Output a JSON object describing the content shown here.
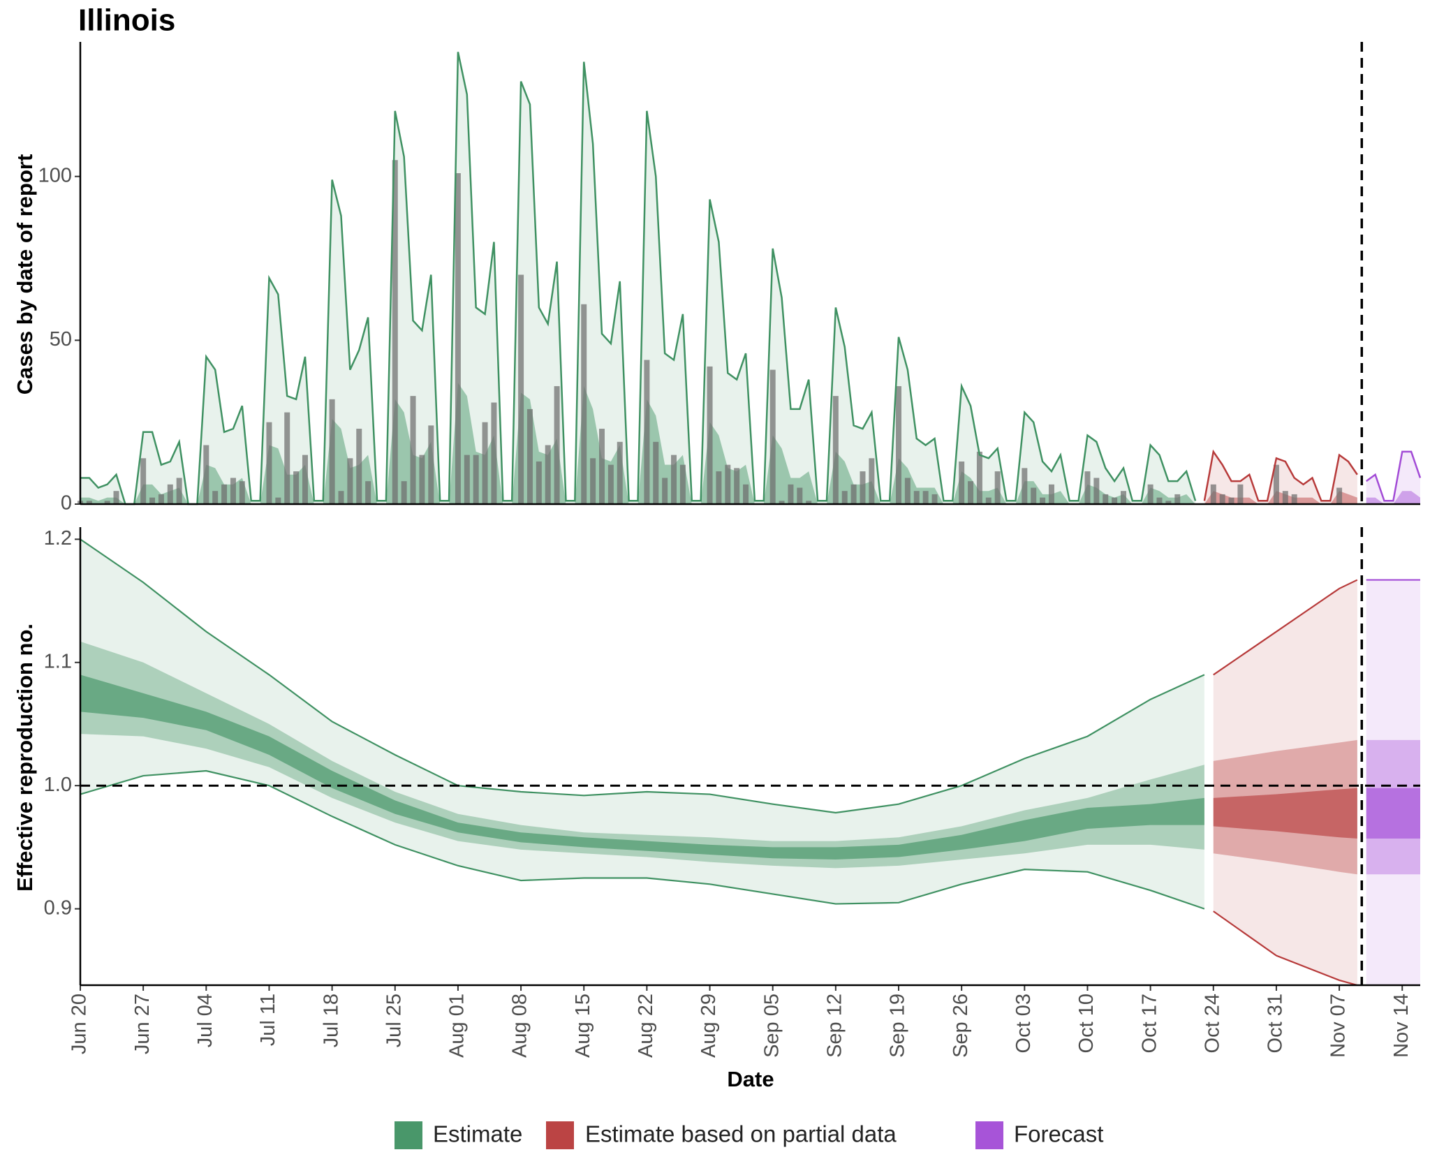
{
  "chart_data": [
    {
      "type": "bar",
      "title": "Illinois",
      "y_label": "Cases by date of report",
      "xlim": [
        0,
        149
      ],
      "ylim": [
        0,
        140
      ],
      "yticks": [
        0,
        50,
        100
      ],
      "bars": {
        "color": "#6e6e6e",
        "x": [
          0,
          1,
          2,
          3,
          4,
          5,
          6,
          7,
          8,
          9,
          10,
          11,
          12,
          13,
          14,
          15,
          16,
          17,
          18,
          19,
          20,
          21,
          22,
          23,
          24,
          25,
          26,
          27,
          28,
          29,
          30,
          31,
          32,
          33,
          34,
          35,
          36,
          37,
          38,
          39,
          40,
          41,
          42,
          43,
          44,
          45,
          46,
          47,
          48,
          49,
          50,
          51,
          52,
          53,
          54,
          55,
          56,
          57,
          58,
          59,
          60,
          61,
          62,
          63,
          64,
          65,
          66,
          67,
          68,
          69,
          70,
          71,
          72,
          73,
          74,
          75,
          76,
          77,
          78,
          79,
          80,
          81,
          82,
          83,
          84,
          85,
          86,
          87,
          88,
          89,
          90,
          91,
          92,
          93,
          94,
          95,
          96,
          97,
          98,
          99,
          100,
          101,
          102,
          103,
          104,
          105,
          106,
          107,
          108,
          109,
          110,
          111,
          112,
          113,
          114,
          115,
          116,
          117,
          118,
          119,
          120,
          121,
          122,
          123,
          124,
          125,
          126,
          127,
          128,
          129,
          130,
          131,
          132,
          133,
          134,
          135,
          136,
          137,
          138,
          139,
          140
        ],
        "values": [
          1,
          1,
          0,
          1,
          4,
          0,
          0,
          14,
          2,
          3,
          6,
          8,
          0,
          0,
          18,
          4,
          6,
          8,
          7,
          0,
          0,
          25,
          2,
          28,
          10,
          15,
          0,
          0,
          32,
          4,
          14,
          23,
          7,
          0,
          0,
          105,
          7,
          33,
          15,
          24,
          0,
          0,
          101,
          15,
          15,
          25,
          31,
          0,
          0,
          70,
          29,
          13,
          18,
          36,
          0,
          0,
          61,
          14,
          23,
          12,
          19,
          0,
          0,
          44,
          19,
          8,
          15,
          12,
          0,
          0,
          42,
          10,
          12,
          11,
          6,
          0,
          0,
          41,
          1,
          6,
          5,
          1,
          0,
          0,
          33,
          4,
          6,
          10,
          14,
          0,
          0,
          36,
          8,
          4,
          4,
          3,
          0,
          0,
          13,
          7,
          16,
          2,
          10,
          0,
          0,
          11,
          5,
          2,
          6,
          0,
          0,
          0,
          10,
          8,
          3,
          2,
          4,
          0,
          0,
          6,
          2,
          1,
          3,
          0,
          0,
          0,
          6,
          3,
          2,
          6,
          0,
          0,
          0,
          12,
          4,
          3,
          0,
          0,
          0,
          0,
          5
        ]
      },
      "series": [
        {
          "name": "Estimate",
          "color": "#3f9162",
          "x": [
            0,
            1,
            2,
            3,
            4,
            5,
            6,
            7,
            8,
            9,
            10,
            11,
            12,
            13,
            14,
            15,
            16,
            17,
            18,
            19,
            20,
            21,
            22,
            23,
            24,
            25,
            26,
            27,
            28,
            29,
            30,
            31,
            32,
            33,
            34,
            35,
            36,
            37,
            38,
            39,
            40,
            41,
            42,
            43,
            44,
            45,
            46,
            47,
            48,
            49,
            50,
            51,
            52,
            53,
            54,
            55,
            56,
            57,
            58,
            59,
            60,
            61,
            62,
            63,
            64,
            65,
            66,
            67,
            68,
            69,
            70,
            71,
            72,
            73,
            74,
            75,
            76,
            77,
            78,
            79,
            80,
            81,
            82,
            83,
            84,
            85,
            86,
            87,
            88,
            89,
            90,
            91,
            92,
            93,
            94,
            95,
            96,
            97,
            98,
            99,
            100,
            101,
            102,
            103,
            104,
            105,
            106,
            107,
            108,
            109,
            110,
            111,
            112,
            113,
            114,
            115,
            116,
            117,
            118,
            119,
            120,
            121,
            122,
            123,
            124
          ],
          "values": [
            8,
            8,
            5,
            6,
            9,
            0,
            0,
            22,
            22,
            12,
            13,
            19,
            0,
            0,
            45,
            41,
            22,
            23,
            30,
            1,
            1,
            69,
            64,
            33,
            32,
            45,
            1,
            1,
            99,
            88,
            41,
            47,
            57,
            1,
            1,
            120,
            106,
            56,
            53,
            70,
            1,
            1,
            138,
            125,
            60,
            58,
            80,
            1,
            1,
            129,
            122,
            60,
            55,
            74,
            1,
            1,
            135,
            110,
            52,
            49,
            68,
            1,
            1,
            120,
            100,
            46,
            44,
            58,
            1,
            1,
            93,
            80,
            40,
            38,
            46,
            1,
            1,
            78,
            63,
            29,
            29,
            38,
            1,
            1,
            60,
            48,
            24,
            23,
            28,
            1,
            1,
            51,
            41,
            20,
            18,
            20,
            1,
            1,
            36,
            30,
            15,
            14,
            17,
            1,
            1,
            28,
            25,
            13,
            10,
            15,
            1,
            1,
            21,
            19,
            11,
            7,
            11,
            1,
            1,
            18,
            15,
            7,
            7,
            10,
            1
          ],
          "median": [
            2,
            2,
            1,
            2,
            2,
            0,
            0,
            6,
            6,
            3,
            4,
            5,
            0,
            0,
            12,
            11,
            6,
            6,
            8,
            0,
            0,
            18,
            17,
            9,
            9,
            12,
            0,
            0,
            26,
            23,
            11,
            12,
            15,
            0,
            0,
            32,
            28,
            15,
            14,
            19,
            0,
            0,
            37,
            33,
            16,
            15,
            21,
            0,
            0,
            34,
            32,
            16,
            15,
            20,
            0,
            0,
            36,
            29,
            14,
            13,
            18,
            0,
            0,
            32,
            27,
            12,
            12,
            15,
            0,
            0,
            25,
            21,
            11,
            10,
            12,
            0,
            0,
            21,
            17,
            8,
            8,
            10,
            0,
            0,
            16,
            13,
            6,
            6,
            7,
            0,
            0,
            14,
            11,
            5,
            5,
            5,
            0,
            0,
            10,
            8,
            4,
            4,
            5,
            0,
            0,
            7,
            7,
            3,
            3,
            4,
            0,
            0,
            6,
            5,
            3,
            2,
            3,
            0,
            0,
            5,
            4,
            2,
            2,
            3,
            0
          ]
        },
        {
          "name": "Estimate based on partial data",
          "color": "#b73a3a",
          "x": [
            125,
            126,
            127,
            128,
            129,
            130,
            131,
            132,
            133,
            134,
            135,
            136,
            137,
            138,
            139,
            140,
            141,
            142
          ],
          "values": [
            1,
            16,
            12,
            7,
            7,
            9,
            1,
            1,
            14,
            13,
            8,
            6,
            8,
            1,
            1,
            15,
            13,
            9
          ],
          "median": [
            0,
            4,
            3,
            2,
            2,
            2,
            0,
            0,
            4,
            3,
            2,
            2,
            2,
            0,
            0,
            4,
            3,
            2
          ]
        },
        {
          "name": "Forecast",
          "color": "#a24bd6",
          "x": [
            143,
            144,
            145,
            146,
            147,
            148,
            149
          ],
          "values": [
            7,
            9,
            1,
            1,
            16,
            16,
            8
          ],
          "median": [
            2,
            2,
            0,
            0,
            4,
            4,
            2
          ]
        }
      ]
    },
    {
      "type": "band",
      "x_label": "Date",
      "y_label": "Effective reproduction no.",
      "xlim": [
        0,
        149
      ],
      "ylim": [
        0.838,
        1.207
      ],
      "yticks": [
        0.9,
        {
          "value": 1,
          "label": "1.0"
        },
        1.1,
        1.2
      ],
      "xticks": [
        {
          "value": 0,
          "label": "Jun 20"
        },
        {
          "value": 7,
          "label": "Jun 27"
        },
        {
          "value": 14,
          "label": "Jul 04"
        },
        {
          "value": 21,
          "label": "Jul 11"
        },
        {
          "value": 28,
          "label": "Jul 18"
        },
        {
          "value": 35,
          "label": "Jul 25"
        },
        {
          "value": 42,
          "label": "Aug 01"
        },
        {
          "value": 49,
          "label": "Aug 08"
        },
        {
          "value": 56,
          "label": "Aug 15"
        },
        {
          "value": 63,
          "label": "Aug 22"
        },
        {
          "value": 70,
          "label": "Aug 29"
        },
        {
          "value": 77,
          "label": "Sep 05"
        },
        {
          "value": 84,
          "label": "Sep 12"
        },
        {
          "value": 91,
          "label": "Sep 19"
        },
        {
          "value": 98,
          "label": "Sep 26"
        },
        {
          "value": 105,
          "label": "Oct 03"
        },
        {
          "value": 112,
          "label": "Oct 10"
        },
        {
          "value": 119,
          "label": "Oct 17"
        },
        {
          "value": 126,
          "label": "Oct 24"
        },
        {
          "value": 133,
          "label": "Oct 31"
        },
        {
          "value": 140,
          "label": "Nov 07"
        },
        {
          "value": 147,
          "label": "Nov 14"
        }
      ],
      "reference_line": 1,
      "series": [
        {
          "name": "Estimate",
          "color": "#3f9162",
          "x": [
            0,
            7,
            14,
            21,
            28,
            35,
            42,
            49,
            56,
            63,
            70,
            77,
            84,
            91,
            98,
            105,
            112,
            119,
            125
          ],
          "upper90": [
            1.2,
            1.165,
            1.125,
            1.09,
            1.052,
            1.025,
            1.0,
            0.995,
            0.992,
            0.995,
            0.993,
            0.985,
            0.978,
            0.985,
            1.0,
            1.022,
            1.04,
            1.07,
            1.09
          ],
          "lower90": [
            0.993,
            1.008,
            1.012,
            1.0,
            0.975,
            0.952,
            0.935,
            0.923,
            0.925,
            0.925,
            0.92,
            0.912,
            0.904,
            0.905,
            0.92,
            0.932,
            0.93,
            0.915,
            0.9
          ],
          "upper50": [
            1.117,
            1.1,
            1.075,
            1.05,
            1.02,
            0.995,
            0.977,
            0.968,
            0.962,
            0.96,
            0.958,
            0.955,
            0.955,
            0.958,
            0.967,
            0.98,
            0.99,
            1.005,
            1.017
          ],
          "lower50": [
            1.042,
            1.04,
            1.03,
            1.015,
            0.99,
            0.97,
            0.955,
            0.948,
            0.945,
            0.942,
            0.938,
            0.935,
            0.933,
            0.935,
            0.94,
            0.945,
            0.952,
            0.952,
            0.948
          ],
          "upper20": [
            1.09,
            1.075,
            1.06,
            1.04,
            1.012,
            0.988,
            0.97,
            0.962,
            0.958,
            0.955,
            0.952,
            0.95,
            0.95,
            0.952,
            0.96,
            0.972,
            0.982,
            0.985,
            0.99
          ],
          "lower20": [
            1.06,
            1.055,
            1.045,
            1.025,
            0.998,
            0.977,
            0.962,
            0.954,
            0.95,
            0.947,
            0.944,
            0.941,
            0.94,
            0.942,
            0.948,
            0.955,
            0.965,
            0.968,
            0.968
          ]
        },
        {
          "name": "Estimate based on partial data",
          "color": "#b73a3a",
          "x": [
            126,
            133,
            140,
            142
          ],
          "upper90": [
            1.09,
            1.125,
            1.16,
            1.167
          ],
          "lower90": [
            0.898,
            0.862,
            0.842,
            0.838
          ],
          "upper50": [
            1.02,
            1.028,
            1.035,
            1.037
          ],
          "lower50": [
            0.945,
            0.938,
            0.93,
            0.928
          ],
          "upper20": [
            0.99,
            0.993,
            0.997,
            0.998
          ],
          "lower20": [
            0.967,
            0.963,
            0.958,
            0.957
          ]
        },
        {
          "name": "Forecast",
          "color": "#a24bd6",
          "x": [
            143,
            149
          ],
          "upper90": [
            1.167,
            1.167
          ],
          "lower90": [
            0.838,
            0.838
          ],
          "upper50": [
            1.037,
            1.037
          ],
          "lower50": [
            0.928,
            0.928
          ],
          "upper20": [
            0.998,
            0.998
          ],
          "lower20": [
            0.957,
            0.957
          ]
        }
      ]
    }
  ]
}
